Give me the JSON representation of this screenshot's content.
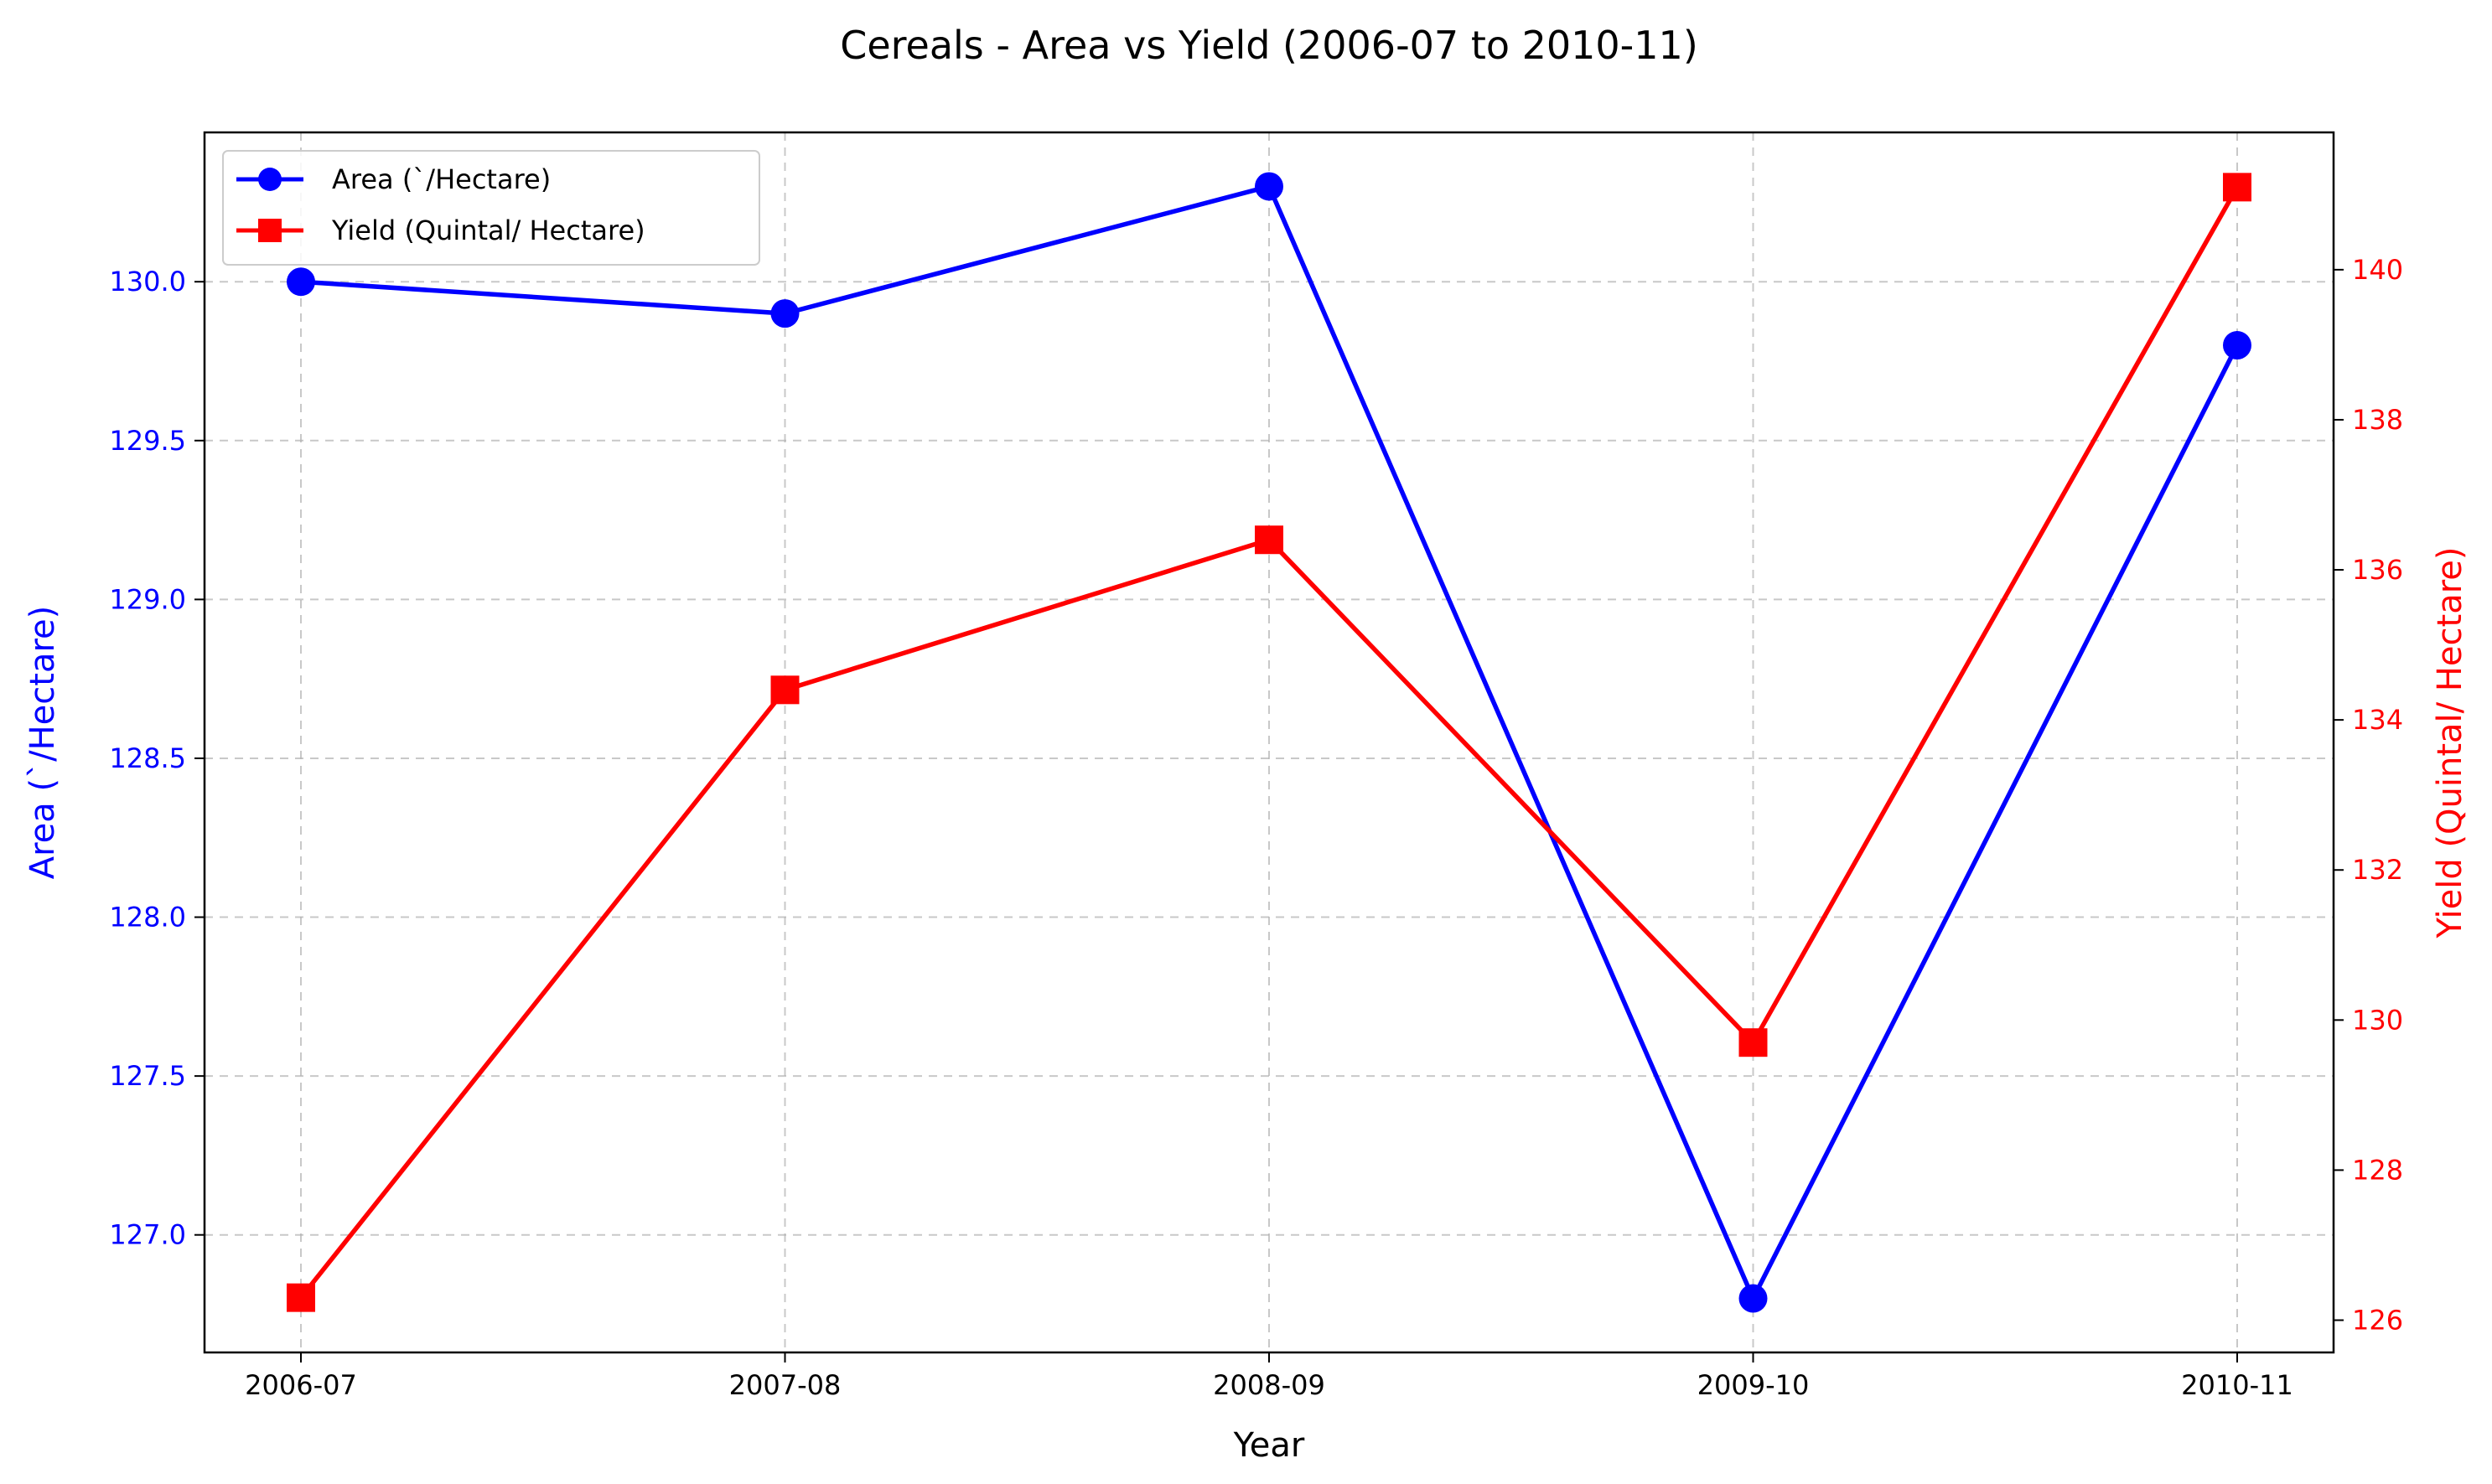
{
  "chart_data": {
    "type": "line",
    "title": "Cereals - Area vs Yield (2006-07 to 2010-11)",
    "xlabel": "Year",
    "ylabel_left": "Area (`/Hectare)",
    "ylabel_right": "Yield (Quintal/ Hectare)",
    "categories": [
      "2006-07",
      "2007-08",
      "2008-09",
      "2009-10",
      "2010-11"
    ],
    "ylim_left": [
      126.63,
      130.47
    ],
    "ylim_right": [
      125.57,
      141.83
    ],
    "yticks_left": [
      "127.0",
      "127.5",
      "128.0",
      "128.5",
      "129.0",
      "129.5",
      "130.0"
    ],
    "yticks_right": [
      "126",
      "128",
      "130",
      "132",
      "134",
      "136",
      "138",
      "140"
    ],
    "grid": true,
    "grid_style": "dashed",
    "legend_position": "top-left",
    "series": [
      {
        "name": "Area (`/Hectare)",
        "axis": "left",
        "color": "#0000ff",
        "marker": "circle",
        "values": [
          130.0,
          129.9,
          130.3,
          126.8,
          129.8
        ]
      },
      {
        "name": "Yield (Quintal/ Hectare)",
        "axis": "right",
        "color": "#ff0000",
        "marker": "square",
        "values": [
          126.3,
          134.4,
          136.4,
          129.7,
          141.1
        ]
      }
    ]
  }
}
